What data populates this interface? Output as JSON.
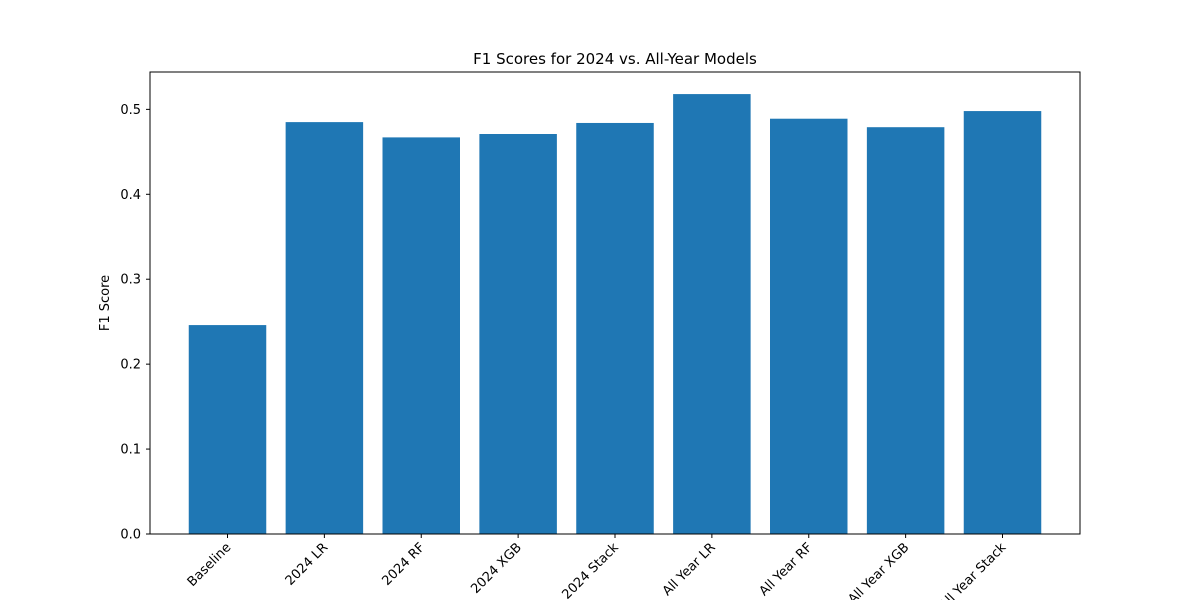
{
  "chart_data": {
    "type": "bar",
    "title": "F1 Scores for 2024 vs. All-Year Models",
    "xlabel": "",
    "ylabel": "F1 Score",
    "categories": [
      "Baseline",
      "2024 LR",
      "2024 RF",
      "2024 XGB",
      "2024 Stack",
      "All Year LR",
      "All Year RF",
      "All Year XGB",
      "All Year Stack"
    ],
    "values": [
      0.246,
      0.485,
      0.467,
      0.471,
      0.484,
      0.518,
      0.489,
      0.479,
      0.498
    ],
    "ylim": [
      0,
      0.544
    ],
    "yticks": [
      0.0,
      0.1,
      0.2,
      0.3,
      0.4,
      0.5
    ],
    "ytick_labels": [
      "0.0",
      "0.1",
      "0.2",
      "0.3",
      "0.4",
      "0.5"
    ],
    "grid": false,
    "bar_color": "#1f77b4"
  }
}
